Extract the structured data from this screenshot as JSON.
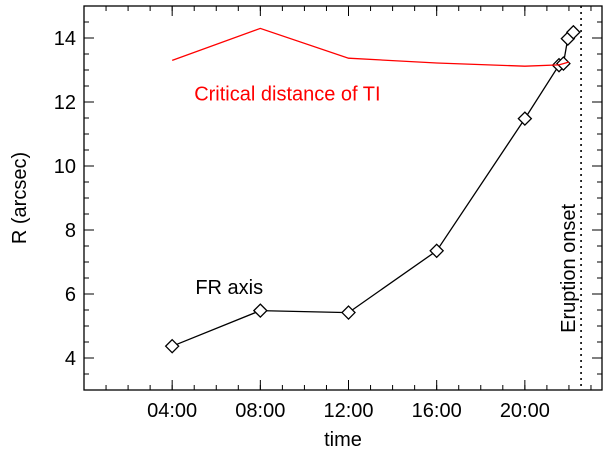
{
  "chart_data": {
    "type": "line",
    "xlabel": "time",
    "ylabel": "R (arcsec)",
    "xlim": [
      0,
      23.5
    ],
    "ylim": [
      3,
      15
    ],
    "x_ticks": [
      {
        "value": 4,
        "label": "04:00"
      },
      {
        "value": 8,
        "label": "08:00"
      },
      {
        "value": 12,
        "label": "12:00"
      },
      {
        "value": 16,
        "label": "16:00"
      },
      {
        "value": 20,
        "label": "20:00"
      }
    ],
    "x_minor_step": 1,
    "y_ticks": [
      {
        "value": 4,
        "label": "4"
      },
      {
        "value": 6,
        "label": "6"
      },
      {
        "value": 8,
        "label": "8"
      },
      {
        "value": 10,
        "label": "10"
      },
      {
        "value": 12,
        "label": "12"
      },
      {
        "value": 14,
        "label": "14"
      }
    ],
    "y_minor_step": 0.5,
    "series": [
      {
        "name": "FR axis",
        "color": "#000000",
        "marker": "diamond",
        "x": [
          4.0,
          8.0,
          12.0,
          16.0,
          20.0,
          21.55,
          21.75,
          21.95,
          22.2
        ],
        "y": [
          4.37,
          5.48,
          5.42,
          7.35,
          11.48,
          13.15,
          13.2,
          13.98,
          14.18
        ]
      },
      {
        "name": "Critical distance of TI",
        "color": "#ff0000",
        "marker": "none",
        "x": [
          4.0,
          8.0,
          12.0,
          16.0,
          20.0,
          21.55,
          21.75,
          22.0
        ],
        "y": [
          13.3,
          14.3,
          13.37,
          13.22,
          13.12,
          13.16,
          13.2,
          13.25
        ]
      }
    ],
    "vline": {
      "x": 22.55,
      "label": "Eruption onset",
      "style": "dotted"
    },
    "annotations": [
      {
        "text": "Critical distance of TI",
        "color": "#ff0000",
        "x": 5.0,
        "y": 12.05
      },
      {
        "text": "FR axis",
        "color": "#000000",
        "x": 5.05,
        "y": 6.0
      }
    ]
  }
}
